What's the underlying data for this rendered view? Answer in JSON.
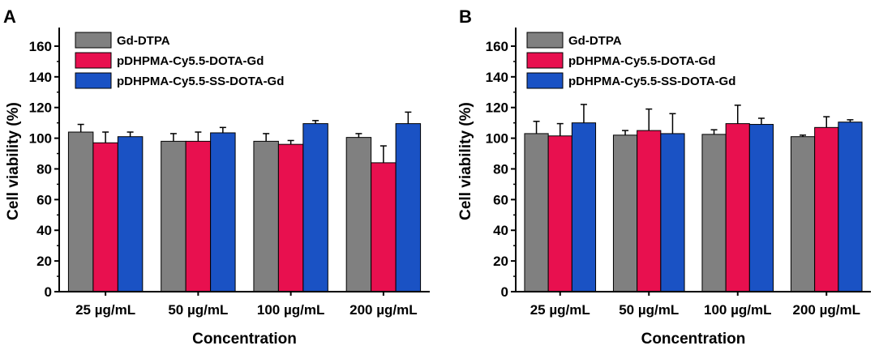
{
  "chart_data": [
    {
      "type": "bar",
      "panel_label": "A",
      "title": "",
      "xlabel": "Concentration",
      "ylabel": "Cell viability (%)",
      "ylim": [
        0,
        170
      ],
      "yticks": [
        0,
        20,
        40,
        60,
        80,
        100,
        120,
        140,
        160
      ],
      "categories": [
        "25 µg/mL",
        "50 µg/mL",
        "100 µg/mL",
        "200 µg/mL"
      ],
      "legend_position": "top-left",
      "series": [
        {
          "name": "Gd-DTPA",
          "color": "#808080",
          "values": [
            104,
            98,
            98,
            100.5
          ],
          "errors": [
            5,
            5,
            5,
            2.5
          ]
        },
        {
          "name": "pDHPMA-Cy5.5-DOTA-Gd",
          "color": "#e8104f",
          "values": [
            97,
            98,
            96,
            84
          ],
          "errors": [
            7,
            6,
            2.5,
            11
          ]
        },
        {
          "name": "pDHPMA-Cy5.5-SS-DOTA-Gd",
          "color": "#1a52c4",
          "values": [
            101,
            103.5,
            109.5,
            109.5
          ],
          "errors": [
            3,
            3.5,
            2,
            7.5
          ]
        }
      ]
    },
    {
      "type": "bar",
      "panel_label": "B",
      "title": "",
      "xlabel": "Concentration",
      "ylabel": "Cell viability (%)",
      "ylim": [
        0,
        170
      ],
      "yticks": [
        0,
        20,
        40,
        60,
        80,
        100,
        120,
        140,
        160
      ],
      "categories": [
        "25 µg/mL",
        "50 µg/mL",
        "100 µg/mL",
        "200 µg/mL"
      ],
      "legend_position": "top-left",
      "series": [
        {
          "name": "Gd-DTPA",
          "color": "#808080",
          "values": [
            103,
            102,
            102.5,
            101
          ],
          "errors": [
            8,
            3,
            3,
            1
          ]
        },
        {
          "name": "pDHPMA-Cy5.5-DOTA-Gd",
          "color": "#e8104f",
          "values": [
            101.5,
            105,
            109.5,
            107
          ],
          "errors": [
            8,
            14,
            12,
            7
          ]
        },
        {
          "name": "pDHPMA-Cy5.5-SS-DOTA-Gd",
          "color": "#1a52c4",
          "values": [
            110,
            103,
            109,
            110.5
          ],
          "errors": [
            12,
            13,
            4,
            1.5
          ]
        }
      ]
    }
  ]
}
